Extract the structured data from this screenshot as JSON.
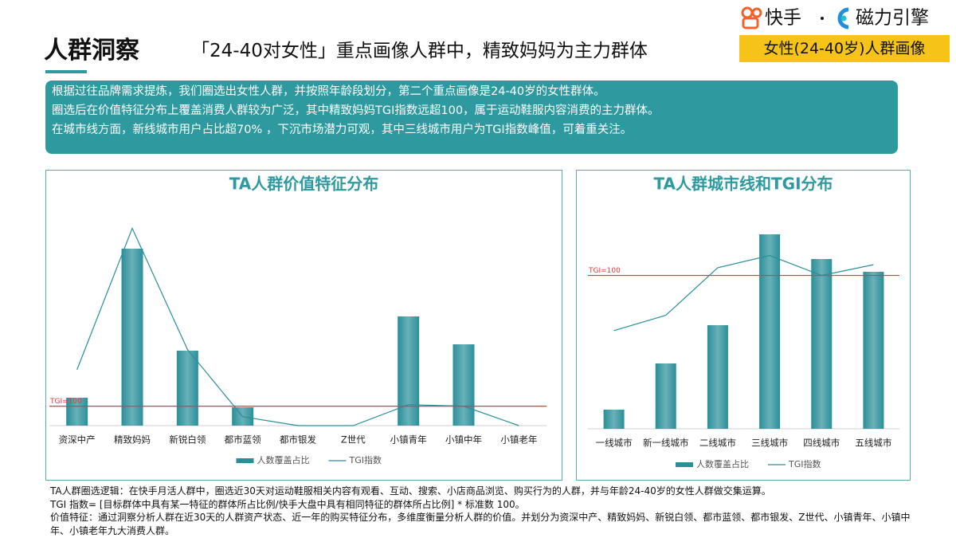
{
  "header": {
    "title": "人群洞察",
    "subtitle": "「24-40对女性」重点画像人群中，精致妈妈为主力群体",
    "tag": "女性(24-40岁)人群画像",
    "logo_left": "快手",
    "logo_right": "磁力引擎"
  },
  "intro": [
    "根据过往品牌需求提炼，我们圈选出女性人群，并按照年龄段划分，第二个重点画像是24-40岁的女性群体。",
    "圈选后在价值特征分布上覆盖消费人群较为广泛，其中精致妈妈TGI指数远超100，属于运动鞋服内容消费的主力群体。",
    "在城市线方面，新线城市用户占比超70% ，下沉市场潜力可观，其中三线城市用户为TGI指数峰值，可着重关注。"
  ],
  "chart_data": [
    {
      "type": "bar-line",
      "title": "TA人群价值特征分布",
      "categories": [
        "资深中产",
        "精致妈妈",
        "新锐白领",
        "都市蓝领",
        "都市银发",
        "Z世代",
        "小镇青年",
        "小镇中年",
        "小镇老年"
      ],
      "series": [
        {
          "name": "人数覆盖占比",
          "type": "bar",
          "color": "#2a8f99",
          "values": [
            35,
            222,
            94,
            23,
            0,
            0,
            137,
            102,
            0
          ]
        },
        {
          "name": "TGI指数",
          "type": "line",
          "axis": "y2",
          "color": "#2a8f99",
          "values": [
            288,
            1017,
            392,
            46,
            0,
            0,
            108,
            100,
            0
          ]
        }
      ],
      "ylim": [
        0,
        280
      ],
      "y2lim": [
        0,
        1150
      ],
      "reference": {
        "value": 100,
        "label": "TGI=100",
        "axis": "y2",
        "color": "#e03a3a"
      }
    },
    {
      "type": "bar-line",
      "title": "TA人群城市线和TGI分布",
      "categories": [
        "一线城市",
        "新一线城市",
        "二线城市",
        "三线城市",
        "四线城市",
        "五线城市"
      ],
      "series": [
        {
          "name": "人数覆盖占比",
          "type": "bar",
          "color": "#2a8f99",
          "values": [
            24,
            82,
            130,
            244,
            213,
            197
          ]
        },
        {
          "name": "TGI指数",
          "type": "line",
          "axis": "y2",
          "color": "#2a8f99",
          "values": [
            64,
            74,
            105,
            113,
            100,
            107
          ]
        }
      ],
      "ylim": [
        0,
        254
      ],
      "y2lim": [
        0,
        132
      ],
      "reference": {
        "value": 100,
        "label": "TGI=100",
        "axis": "y2",
        "color": "#e03a3a"
      }
    }
  ],
  "notes": [
    "TA人群圈选逻辑：在快手月活人群中，圈选近30天对运动鞋服相关内容有观看、互动、搜索、小店商品浏览、购买行为的人群，并与年龄24-40岁的女性人群做交集运算。",
    "TGI 指数= [目标群体中具有某一特征的群体所占比例/快手大盘中具有相同特征的群体所占比例] * 标准数 100。",
    "价值特征：通过洞察分析人群在近30天的人群资产状态、近一年的购买特征分布，多维度衡量分析人群的价值。并划分为资深中产、精致妈妈、新锐白领、都市蓝领、都市银发、Z世代、小镇青年、小镇中年、小镇老年九大消费人群。"
  ]
}
